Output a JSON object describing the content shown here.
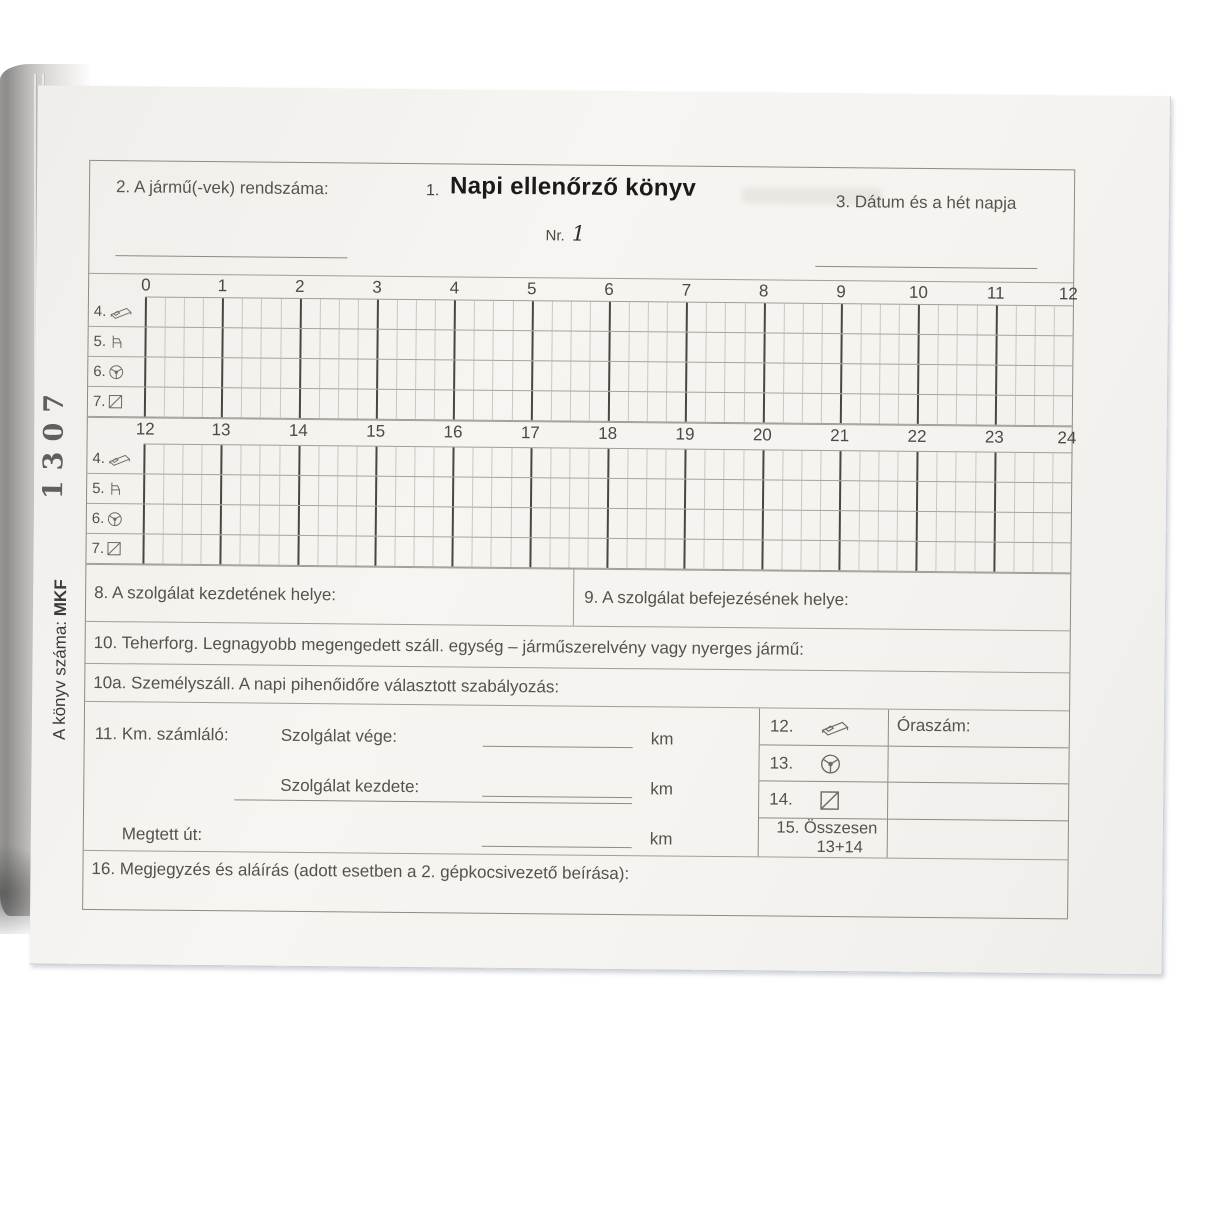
{
  "margin": {
    "serial_stamp": "1307",
    "book_number_label": "A könyv száma:",
    "book_number_value": "MKF"
  },
  "header": {
    "field2_label": "2. A jármű(-vek) rendszáma:",
    "title_prefix": "1.",
    "title": "Napi ellenőrző könyv",
    "nr_label": "Nr.",
    "nr_value": "1",
    "field3_label": "3. Dátum és a hét napja"
  },
  "timegrid": {
    "quarters_per_hour": 4,
    "morning_hours": [
      "0",
      "1",
      "2",
      "3",
      "4",
      "5",
      "6",
      "7",
      "8",
      "9",
      "10",
      "11",
      "12"
    ],
    "afternoon_hours": [
      "12",
      "13",
      "14",
      "15",
      "16",
      "17",
      "18",
      "19",
      "20",
      "21",
      "22",
      "23",
      "24"
    ],
    "rows": [
      {
        "num": "4.",
        "icon": "bed-icon"
      },
      {
        "num": "5.",
        "icon": "chair-icon"
      },
      {
        "num": "6.",
        "icon": "steering-wheel-icon"
      },
      {
        "num": "7.",
        "icon": "crossed-square-icon"
      }
    ]
  },
  "sections": {
    "s8_label": "8. A szolgálat kezdetének helye:",
    "s9_label": "9. A szolgálat befejezésének helye:",
    "s10_label": "10. Teherforg. Legnagyobb megengedett száll. egység – járműszerelvény vagy nyerges jármű:",
    "s10a_label": "10a. Személyszáll. A napi pihenőidőre választott szabályozás:",
    "s11": {
      "label": "11. Km. számláló:",
      "end_label": "Szolgálat vége:",
      "start_label": "Szolgálat kezdete:",
      "distance_label": "Megtett út:",
      "unit": "km"
    },
    "hours_table": {
      "header": "Óraszám:",
      "row12_num": "12.",
      "row13_num": "13.",
      "row14_num": "14.",
      "row15_line1": "15. Összesen",
      "row15_line2": "13+14"
    },
    "s16_label": "16. Megjegyzés és aláírás (adott esetben a 2. gépkocsivezető beírása):"
  }
}
